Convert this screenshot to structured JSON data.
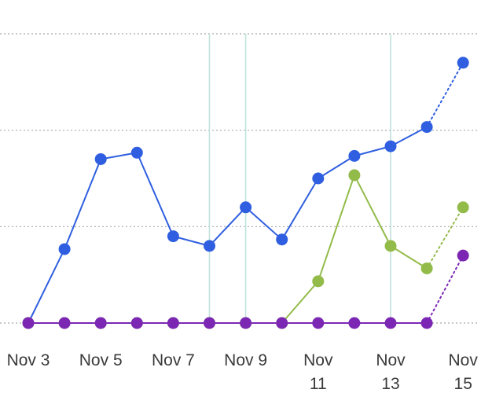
{
  "chart_data": {
    "type": "line",
    "title": "",
    "xlabel": "",
    "ylabel": "",
    "grid": true,
    "legend": "none",
    "ylim": [
      0,
      9
    ],
    "categories": [
      "Nov 3",
      "Nov 4",
      "Nov 5",
      "Nov 6",
      "Nov 7",
      "Nov 8",
      "Nov 9",
      "Nov 10",
      "Nov 11",
      "Nov 12",
      "Nov 13",
      "Nov 14",
      "Nov 15"
    ],
    "tick_labels": [
      {
        "index": 0,
        "lines": [
          "Nov 3"
        ]
      },
      {
        "index": 2,
        "lines": [
          "Nov 5"
        ]
      },
      {
        "index": 4,
        "lines": [
          "Nov 7"
        ]
      },
      {
        "index": 6,
        "lines": [
          "Nov 9"
        ]
      },
      {
        "index": 8,
        "lines": [
          "Nov",
          "11"
        ]
      },
      {
        "index": 10,
        "lines": [
          "Nov",
          "13"
        ]
      },
      {
        "index": 12,
        "lines": [
          "Nov",
          "15"
        ]
      }
    ],
    "gridline_values": [
      0,
      3,
      6,
      9
    ],
    "highlight_categories": [
      "Nov 8",
      "Nov 9",
      "Nov 13"
    ],
    "series": [
      {
        "color": "#2f5fe0",
        "values": [
          0,
          2.3,
          5.1,
          5.3,
          2.7,
          2.4,
          3.6,
          2.6,
          4.5,
          5.2,
          5.5,
          6.1,
          8.1
        ]
      },
      {
        "color": "#93bb4a",
        "values": [
          0,
          0,
          0,
          0,
          0,
          0,
          0,
          0,
          1.3,
          4.6,
          2.4,
          1.7,
          3.6
        ]
      },
      {
        "color": "#7b27b4",
        "values": [
          0,
          0,
          0,
          0,
          0,
          0,
          0,
          0,
          0,
          0,
          0,
          0,
          2.1
        ]
      }
    ],
    "projected_from_index": 11
  }
}
